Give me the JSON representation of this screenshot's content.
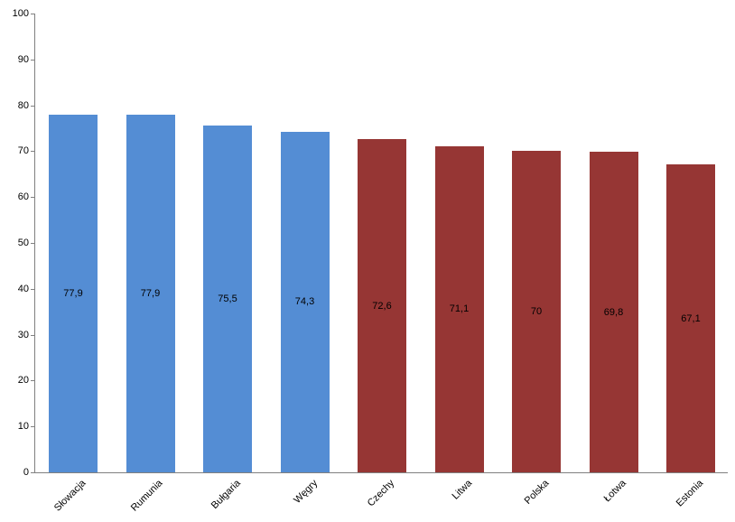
{
  "chart_data": {
    "type": "bar",
    "title": "",
    "xlabel": "",
    "ylabel": "",
    "categories": [
      "Słowacja",
      "Rumunia",
      "Bułgaria",
      "Węgry",
      "Czechy",
      "Litwa",
      "Polska",
      "Łotwa",
      "Estonia"
    ],
    "values": [
      77.9,
      77.9,
      75.5,
      74.3,
      72.6,
      71.1,
      70,
      69.8,
      67.1
    ],
    "value_labels": [
      "77,9",
      "77,9",
      "75,5",
      "74,3",
      "72,6",
      "71,1",
      "70",
      "69,8",
      "67,1"
    ],
    "series": [
      {
        "name": "group-blue",
        "categories": [
          "Słowacja",
          "Rumunia",
          "Bułgaria",
          "Węgry"
        ],
        "values": [
          77.9,
          77.9,
          75.5,
          74.3
        ],
        "color": "#548DD4"
      },
      {
        "name": "group-red",
        "categories": [
          "Czechy",
          "Litwa",
          "Polska",
          "Łotwa",
          "Estonia"
        ],
        "values": [
          72.6,
          71.1,
          70,
          69.8,
          67.1
        ],
        "color": "#963634"
      }
    ],
    "bar_colors": [
      "#548DD4",
      "#548DD4",
      "#548DD4",
      "#548DD4",
      "#963634",
      "#963634",
      "#963634",
      "#963634",
      "#963634"
    ],
    "ylim": [
      0,
      100
    ],
    "yticks": [
      0,
      10,
      20,
      30,
      40,
      50,
      60,
      70,
      80,
      90,
      100
    ],
    "grid": false,
    "legend_position": "none",
    "data_label_position": "center",
    "category_label_rotation_deg": 45,
    "decimal_separator": ",",
    "axis_color": "#808080",
    "text_color": "#000000",
    "background_color": "#ffffff"
  }
}
